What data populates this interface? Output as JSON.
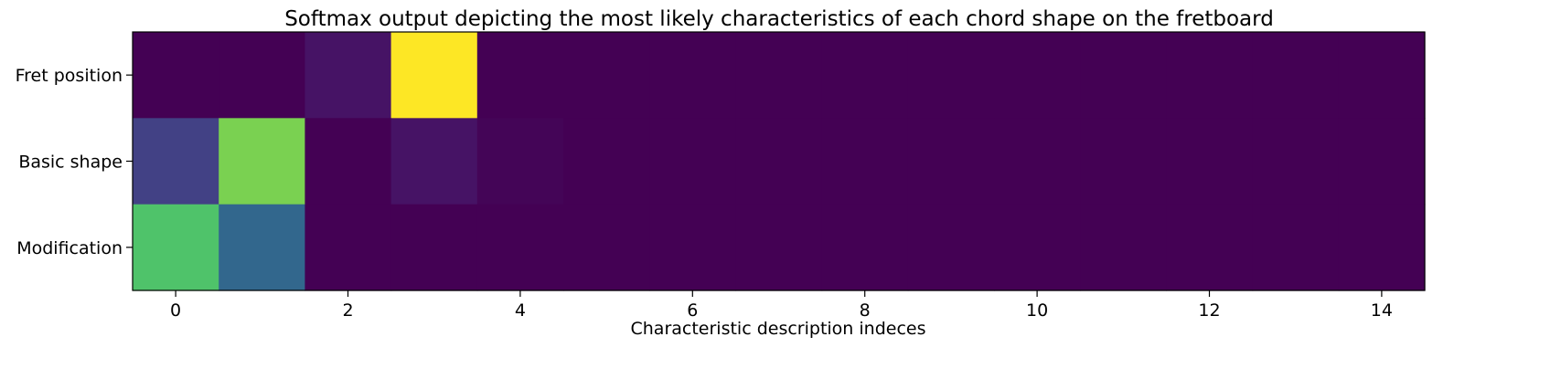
{
  "chart_data": {
    "type": "heatmap",
    "title": "Softmax output depicting the most likely characteristics of each chord shape on the fretboard",
    "xlabel": "Characteristic description indeces",
    "ylabel": "",
    "rows": [
      "Fret position",
      "Basic shape",
      "Modification"
    ],
    "x": [
      0,
      1,
      2,
      3,
      4,
      5,
      6,
      7,
      8,
      9,
      10,
      11,
      12,
      13,
      14
    ],
    "xlim": [
      -0.5,
      14.5
    ],
    "xticks": [
      "0",
      "2",
      "4",
      "6",
      "8",
      "10",
      "12",
      "14"
    ],
    "colormap": "viridis",
    "value_range": [
      0,
      1
    ],
    "values": [
      [
        0.0,
        0.0,
        0.05,
        1.0,
        0.0,
        0.0,
        0.0,
        0.0,
        0.0,
        0.0,
        0.0,
        0.0,
        0.0,
        0.0,
        0.0
      ],
      [
        0.19,
        0.8,
        0.0,
        0.05,
        0.01,
        0.0,
        0.0,
        0.0,
        0.0,
        0.0,
        0.0,
        0.0,
        0.0,
        0.0,
        0.0
      ],
      [
        0.72,
        0.33,
        0.0,
        0.0,
        0.0,
        0.0,
        0.0,
        0.0,
        0.0,
        0.0,
        0.0,
        0.0,
        0.0,
        0.0,
        0.0
      ]
    ],
    "grid": false,
    "legend": "none"
  }
}
